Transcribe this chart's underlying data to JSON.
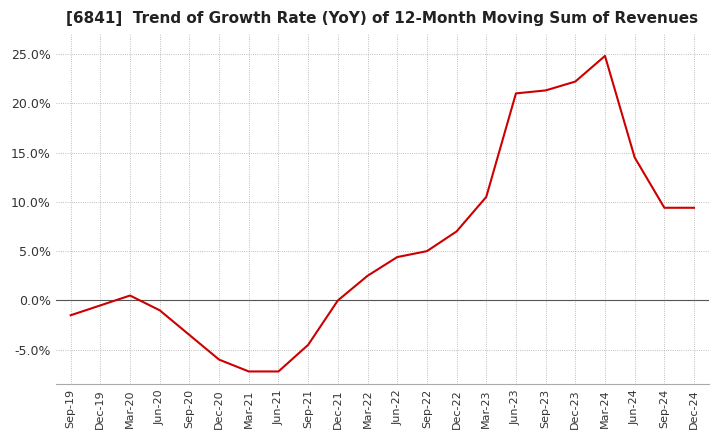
{
  "title": "[6841]  Trend of Growth Rate (YoY) of 12-Month Moving Sum of Revenues",
  "title_fontsize": 11,
  "line_color": "#cc0000",
  "background_color": "#ffffff",
  "grid_color": "#aaaaaa",
  "ylim": [
    -0.085,
    0.27
  ],
  "yticks": [
    -0.05,
    0.0,
    0.05,
    0.1,
    0.15,
    0.2,
    0.25
  ],
  "x_labels": [
    "Sep-19",
    "Dec-19",
    "Mar-20",
    "Jun-20",
    "Sep-20",
    "Dec-20",
    "Mar-21",
    "Jun-21",
    "Sep-21",
    "Dec-21",
    "Mar-22",
    "Jun-22",
    "Sep-22",
    "Dec-22",
    "Mar-23",
    "Jun-23",
    "Sep-23",
    "Dec-23",
    "Mar-24",
    "Jun-24",
    "Sep-24",
    "Dec-24"
  ],
  "y_values": [
    -0.015,
    -0.005,
    0.005,
    -0.01,
    -0.035,
    -0.06,
    -0.072,
    -0.072,
    -0.045,
    0.0,
    0.025,
    0.044,
    0.05,
    0.07,
    0.105,
    0.21,
    0.213,
    0.222,
    0.248,
    0.145,
    0.094,
    0.094
  ]
}
